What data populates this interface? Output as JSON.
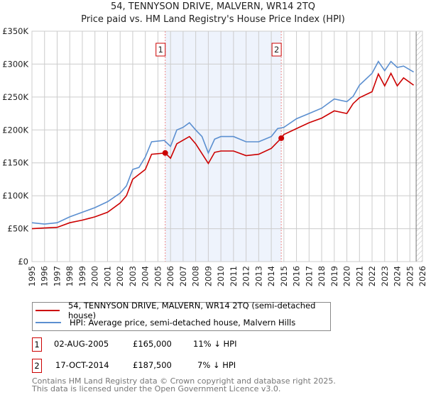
{
  "title": "54, TENNYSON DRIVE, MALVERN, WR14 2TQ",
  "subtitle": "Price paid vs. HM Land Registry's House Price Index (HPI)",
  "colors": {
    "property": "#cc0000",
    "hpi": "#5b8fd0",
    "shade": "#eef3fc",
    "marker_box": "#cc0000"
  },
  "chart_data": {
    "type": "line",
    "title": "54, TENNYSON DRIVE, MALVERN, WR14 2TQ",
    "xlim": [
      1995,
      2026
    ],
    "ylim": [
      0,
      350000
    ],
    "x_ticks": [
      "1995",
      "1996",
      "1997",
      "1998",
      "1999",
      "2000",
      "2001",
      "2002",
      "2003",
      "2004",
      "2005",
      "2006",
      "2007",
      "2008",
      "2009",
      "2010",
      "2011",
      "2012",
      "2013",
      "2014",
      "2015",
      "2016",
      "2017",
      "2018",
      "2019",
      "2020",
      "2021",
      "2022",
      "2023",
      "2024",
      "2025",
      "2026"
    ],
    "y_ticks": [
      {
        "v": 0,
        "label": "£0"
      },
      {
        "v": 50000,
        "label": "£50K"
      },
      {
        "v": 100000,
        "label": "£100K"
      },
      {
        "v": 150000,
        "label": "£150K"
      },
      {
        "v": 200000,
        "label": "£200K"
      },
      {
        "v": 250000,
        "label": "£250K"
      },
      {
        "v": 300000,
        "label": "£300K"
      },
      {
        "v": 350000,
        "label": "£350K"
      }
    ],
    "grid": true,
    "series": [
      {
        "name": "54, TENNYSON DRIVE, MALVERN, WR14 2TQ (semi-detached house)",
        "color": "#cc0000",
        "x": [
          1995,
          1996,
          1997,
          1998,
          1999,
          2000,
          2001,
          2002,
          2002.5,
          2003,
          2004,
          2004.5,
          2005.58,
          2006,
          2006.5,
          2007.5,
          2008,
          2009,
          2009.5,
          2010,
          2011,
          2012,
          2013,
          2014,
          2014.79,
          2015,
          2016,
          2017,
          2018,
          2019,
          2020,
          2020.5,
          2021,
          2022,
          2022.5,
          2023,
          2023.5,
          2024,
          2024.5,
          2025.3
        ],
        "y": [
          50000,
          51000,
          52000,
          59000,
          63000,
          68000,
          75000,
          89000,
          100000,
          125000,
          140000,
          163000,
          165000,
          157000,
          179000,
          190000,
          179000,
          149000,
          166000,
          168000,
          168000,
          161000,
          163000,
          172000,
          187500,
          193000,
          202000,
          211000,
          218000,
          229000,
          225000,
          240000,
          249000,
          258000,
          285000,
          267000,
          286000,
          267000,
          279000,
          268000
        ]
      },
      {
        "name": "HPI: Average price, semi-detached house, Malvern Hills",
        "color": "#5b8fd0",
        "x": [
          1995,
          1996,
          1997,
          1998,
          1999,
          2000,
          2001,
          2002,
          2002.5,
          2003,
          2003.5,
          2004,
          2004.5,
          2005.5,
          2006,
          2006.5,
          2007,
          2007.5,
          2008,
          2008.5,
          2009,
          2009.5,
          2010,
          2011,
          2012,
          2013,
          2014,
          2014.5,
          2015,
          2016,
          2017,
          2018,
          2019,
          2020,
          2020.5,
          2021,
          2022,
          2022.5,
          2023,
          2023.5,
          2024,
          2024.5,
          2025.3
        ],
        "y": [
          59000,
          57000,
          59000,
          68000,
          75000,
          82000,
          91000,
          104000,
          115000,
          140000,
          143000,
          159000,
          182000,
          184000,
          175000,
          200000,
          204000,
          211000,
          200000,
          190000,
          165000,
          186000,
          190000,
          190000,
          182000,
          182000,
          190000,
          202000,
          204000,
          217000,
          225000,
          233000,
          247000,
          243000,
          251000,
          268000,
          286000,
          304000,
          290000,
          304000,
          295000,
          297000,
          288000
        ]
      }
    ],
    "sales": [
      {
        "id": "1",
        "x": 2005.58,
        "y": 165000
      },
      {
        "id": "2",
        "x": 2014.79,
        "y": 187500
      }
    ],
    "shaded_range": [
      2005.58,
      2014.79
    ],
    "hatched_from": 2025.5,
    "legend_position": "below"
  },
  "legend": {
    "property_label": "54, TENNYSON DRIVE, MALVERN, WR14 2TQ (semi-detached house)",
    "hpi_label": "HPI: Average price, semi-detached house, Malvern Hills"
  },
  "transactions": [
    {
      "id": "1",
      "date": "02-AUG-2005",
      "price": "£165,000",
      "diff": "11% ↓ HPI"
    },
    {
      "id": "2",
      "date": "17-OCT-2014",
      "price": "£187,500",
      "diff": "7% ↓ HPI"
    }
  ],
  "footer": {
    "line1": "Contains HM Land Registry data © Crown copyright and database right 2025.",
    "line2": "This data is licensed under the Open Government Licence v3.0."
  }
}
